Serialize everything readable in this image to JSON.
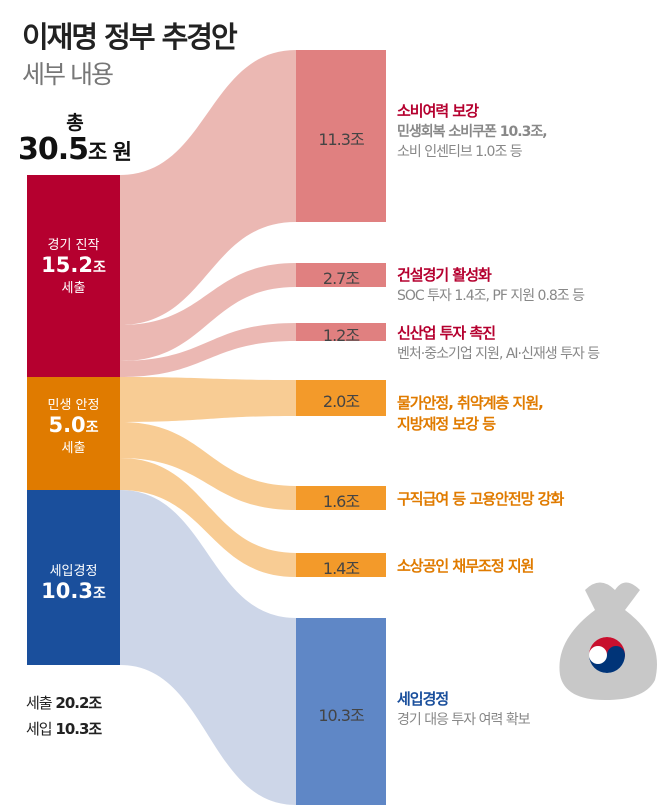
{
  "title": "이재명 정부 추경안",
  "subtitle": "세부 내용",
  "total": {
    "label": "총",
    "value": "30.5",
    "unit": "조 원"
  },
  "colors": {
    "red": "#b5002f",
    "orange": "#e07b00",
    "blue": "#1a4f9c"
  },
  "sources": [
    {
      "name": "경기 진작",
      "value": "15.2",
      "unit": "조",
      "type": "세출"
    },
    {
      "name": "민생 안정",
      "value": "5.0",
      "unit": "조",
      "type": "세출"
    },
    {
      "name": "세입경정",
      "value": "10.3",
      "unit": "조",
      "type": ""
    }
  ],
  "targets": [
    {
      "value": "11.3조",
      "title": "소비여력 보강",
      "sub1": "민생회복 소비쿠폰 10.3조,",
      "sub2": "소비 인센티브 1.0조 등"
    },
    {
      "value": "2.7조",
      "title": "건설경기 활성화",
      "sub1": "SOC 투자 1.4조, PF 지원 0.8조 등",
      "sub2": ""
    },
    {
      "value": "1.2조",
      "title": "신산업 투자 촉진",
      "sub1": "벤처·중소기업 지원, AI·신재생 투자 등",
      "sub2": ""
    },
    {
      "value": "2.0조",
      "title": "물가안정, 취약계층 지원,",
      "title2": "지방재정 보강 등"
    },
    {
      "value": "1.6조",
      "title": "구직급여 등 고용안전망 강화"
    },
    {
      "value": "1.4조",
      "title": "소상공인 채무조정 지원"
    },
    {
      "value": "10.3조",
      "title": "세입경정",
      "sub1": "경기 대응 투자 여력 확보"
    }
  ],
  "footer": {
    "line1_label": "세출",
    "line1_value": "20.2조",
    "line2_label": "세입",
    "line2_value": "10.3조"
  }
}
